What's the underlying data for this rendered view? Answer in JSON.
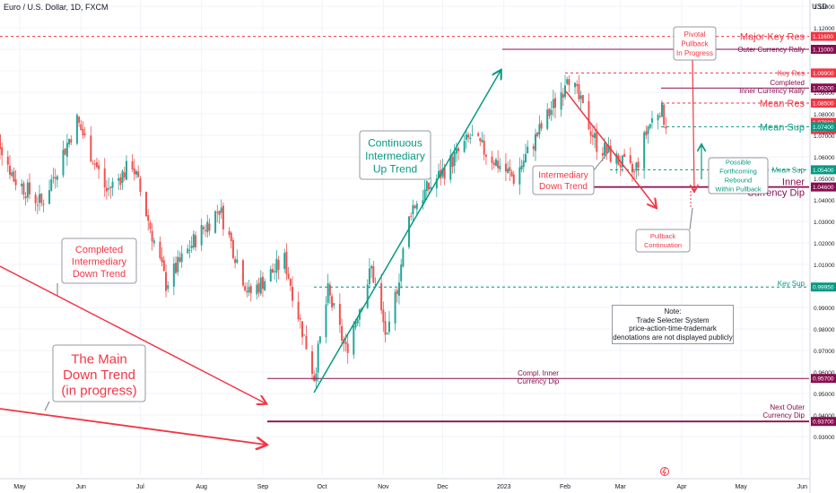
{
  "header": {
    "title": "Euro / U.S. Dollar, 1D, FXCM",
    "currency": "USD"
  },
  "colors": {
    "up": "#26a69a",
    "down": "#ef5350",
    "trend_red": "#f23645",
    "trend_green": "#089981",
    "maroon": "#880e4f",
    "price_axis_bg": "#f23645",
    "grid": "#f0f3fa"
  },
  "chart_data": {
    "type": "candlestick",
    "ylim": [
      0.925,
      1.14
    ],
    "y_ticks": [
      0.93,
      0.94,
      0.95,
      0.96,
      0.97,
      0.98,
      0.99,
      1.0,
      1.01,
      1.02,
      1.03,
      1.04,
      1.05,
      1.06,
      1.07,
      1.08,
      1.09,
      1.1,
      1.11,
      1.12,
      1.13
    ],
    "x_labels": [
      {
        "label": "May",
        "date": "2022-05-01"
      },
      {
        "label": "Jun",
        "date": "2022-06-01"
      },
      {
        "label": "Jul",
        "date": "2022-07-01"
      },
      {
        "label": "Aug",
        "date": "2022-08-01"
      },
      {
        "label": "Sep",
        "date": "2022-09-01"
      },
      {
        "label": "Oct",
        "date": "2022-10-01"
      },
      {
        "label": "Nov",
        "date": "2022-11-01"
      },
      {
        "label": "Dec",
        "date": "2022-12-01"
      },
      {
        "label": "2023",
        "date": "2023-01-01"
      },
      {
        "label": "Feb",
        "date": "2023-02-01"
      },
      {
        "label": "Mar",
        "date": "2023-03-01"
      },
      {
        "label": "Apr",
        "date": "2023-04-01"
      },
      {
        "label": "May",
        "date": "2023-05-01"
      },
      {
        "label": "Jun",
        "date": "2023-06-01"
      }
    ],
    "price_path": [
      [
        "2022-04-14",
        1.083
      ],
      [
        "2022-04-28",
        1.05
      ],
      [
        "2022-05-12",
        1.038
      ],
      [
        "2022-05-30",
        1.077
      ],
      [
        "2022-06-14",
        1.044
      ],
      [
        "2022-06-27",
        1.057
      ],
      [
        "2022-07-14",
        1.001
      ],
      [
        "2022-07-29",
        1.022
      ],
      [
        "2022-08-10",
        1.036
      ],
      [
        "2022-08-25",
        0.996
      ],
      [
        "2022-09-12",
        1.012
      ],
      [
        "2022-09-27",
        0.958
      ],
      [
        "2022-10-04",
        0.997
      ],
      [
        "2022-10-13",
        0.97
      ],
      [
        "2022-10-26",
        1.008
      ],
      [
        "2022-11-03",
        0.974
      ],
      [
        "2022-11-15",
        1.036
      ],
      [
        "2022-12-02",
        1.054
      ],
      [
        "2022-12-15",
        1.069
      ],
      [
        "2023-01-06",
        1.05
      ],
      [
        "2023-01-31",
        1.092
      ],
      [
        "2023-02-02",
        1.1
      ],
      [
        "2023-02-17",
        1.066
      ],
      [
        "2023-03-08",
        1.052
      ],
      [
        "2023-03-15",
        1.074
      ],
      [
        "2023-03-21",
        1.083
      ],
      [
        "2023-03-24",
        1.076
      ]
    ],
    "levels": [
      {
        "label": "Major Key Res",
        "price": 1.116,
        "tag": "1.11600",
        "style": "dotted",
        "color": "#f23645",
        "text_color": "#f23645",
        "text_size": "large"
      },
      {
        "label": "Outer Currency Rally",
        "price": 1.11,
        "tag": "1.11000",
        "style": "solid",
        "color": "#880e4f",
        "text_color": "#880e4f",
        "text_size": "small"
      },
      {
        "label": "Key Res",
        "price": 1.099,
        "tag": "1.09900",
        "style": "dotted",
        "color": "#f23645",
        "text_color": "#f23645",
        "text_size": "small"
      },
      {
        "label": "Completed Inner Currency Rally",
        "price": 1.092,
        "tag": "1.09200",
        "style": "solid",
        "color": "#880e4f",
        "text_color": "#880e4f",
        "text_size": "small"
      },
      {
        "label": "Mean Res",
        "price": 1.085,
        "tag": "1.08500",
        "style": "dotted",
        "color": "#f23645",
        "text_color": "#f23645",
        "text_size": "large"
      },
      {
        "label": "",
        "price": 1.07603,
        "tag": "1.07603",
        "tag2": "07:47",
        "style": "none",
        "color": "#f23645",
        "text_color": "#f23645",
        "text_size": "small"
      },
      {
        "label": "Mean Sup",
        "price": 1.074,
        "tag": "1.07400",
        "style": "dotted",
        "color": "#089981",
        "text_color": "#089981",
        "text_size": "large"
      },
      {
        "label": "Mean Sup",
        "price": 1.054,
        "tag": "1.05400",
        "style": "dotted",
        "color": "#089981",
        "text_color": "#089981",
        "text_size": "small"
      },
      {
        "label": "Inner Currency Dip",
        "price": 1.046,
        "tag": "1.04600",
        "style": "solid",
        "color": "#880e4f",
        "text_color": "#880e4f",
        "text_size": "large"
      },
      {
        "label": "Key Sup",
        "price": 0.9995,
        "tag": "0.99950",
        "style": "dotted",
        "color": "#089981",
        "text_color": "#089981",
        "text_size": "small"
      },
      {
        "label": "Compl. Inner Currency Dip",
        "price": 0.957,
        "tag": "0.95700",
        "style": "solid",
        "color": "#880e4f",
        "text_color": "#880e4f",
        "text_size": "small"
      },
      {
        "label": "Next Outer Currency Dip",
        "price": 0.937,
        "tag": "0.93700",
        "style": "solid",
        "color": "#880e4f",
        "text_color": "#880e4f",
        "text_size": "small"
      }
    ],
    "annotations": [
      {
        "text": "Completed Intermediary Down Trend",
        "color": "#f23645"
      },
      {
        "text": "The Main Down Trend (in progress)",
        "color": "#f23645"
      },
      {
        "text": "Continuous Intermediary Up Trend",
        "color": "#089981"
      },
      {
        "text": "Intermediary Down Trend",
        "color": "#f23645"
      },
      {
        "text": "Pivotal Pullback In Progress",
        "color": "#f23645"
      },
      {
        "text": "Possible Forthcoming Rebound Within Pullback",
        "color": "#089981"
      },
      {
        "text": "Pullback Continuation",
        "color": "#f23645"
      }
    ],
    "note": [
      "Note:",
      "Trade Selecter System",
      "price-action-time-trademark",
      "denotations are not displayed publicly"
    ]
  }
}
